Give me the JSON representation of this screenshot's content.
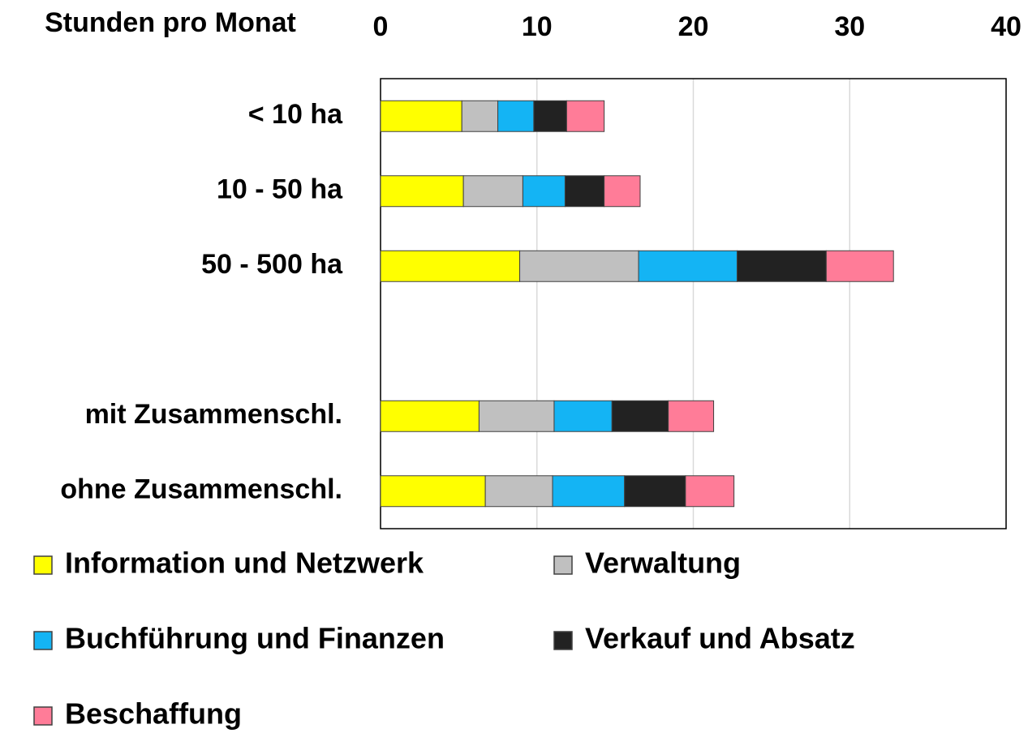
{
  "chart_data": {
    "type": "stacked_bar_horizontal",
    "x_label": "Stunden pro Monat",
    "categories": [
      "< 10 ha",
      "10 - 50 ha",
      "50 - 500 ha",
      null,
      "mit Zusammenschl.",
      "ohne Zusammenschl."
    ],
    "series": [
      {
        "name": "Information und Netzwerk",
        "color": "#ffff00",
        "values": [
          5.2,
          5.3,
          8.9,
          null,
          6.3,
          6.7
        ]
      },
      {
        "name": "Verwaltung",
        "color": "#c0c0c0",
        "values": [
          2.3,
          3.8,
          7.6,
          null,
          4.8,
          4.3
        ]
      },
      {
        "name": "Buchführung und Finanzen",
        "color": "#14b4f4",
        "values": [
          2.3,
          2.7,
          6.3,
          null,
          3.7,
          4.6
        ]
      },
      {
        "name": "Verkauf und Absatz",
        "color": "#222222",
        "values": [
          2.1,
          2.5,
          5.7,
          null,
          3.6,
          3.9
        ]
      },
      {
        "name": "Beschaffung",
        "color": "#ff7c98",
        "values": [
          2.4,
          2.3,
          4.3,
          null,
          2.9,
          3.1
        ]
      }
    ],
    "xlim": [
      0,
      40
    ],
    "xticks": [
      0,
      10,
      20,
      30,
      40
    ],
    "grid": true,
    "legend": "bottom"
  }
}
